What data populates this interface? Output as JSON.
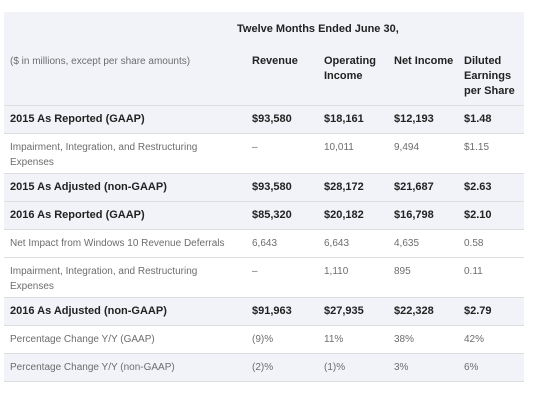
{
  "table": {
    "period_header": "Twelve Months Ended June 30,",
    "columns": [
      "($ in millions, except per share amounts)",
      "Revenue",
      "Operating Income",
      "Net Income",
      "Diluted Earnings per Share"
    ],
    "rows": [
      {
        "label": "2015 As Reported (GAAP)",
        "revenue": "$93,580",
        "operating_income": "$18,161",
        "net_income": "$12,193",
        "eps": "$1.48",
        "style": "bold",
        "bg": "shaded"
      },
      {
        "label": "Impairment, Integration, and Restructuring Expenses",
        "revenue": "–",
        "operating_income": "10,011",
        "net_income": "9,494",
        "eps": "$1.15",
        "style": "light",
        "bg": "white"
      },
      {
        "label": "2015 As Adjusted (non-GAAP)",
        "revenue": "$93,580",
        "operating_income": "$28,172",
        "net_income": "$21,687",
        "eps": "$2.63",
        "style": "bold",
        "bg": "shaded"
      },
      {
        "label": "2016 As Reported (GAAP)",
        "revenue": "$85,320",
        "operating_income": "$20,182",
        "net_income": "$16,798",
        "eps": "$2.10",
        "style": "bold",
        "bg": "shaded"
      },
      {
        "label": "Net Impact from Windows 10 Revenue Deferrals",
        "revenue": "6,643",
        "operating_income": "6,643",
        "net_income": "4,635",
        "eps": "0.58",
        "style": "light",
        "bg": "white"
      },
      {
        "label": "Impairment, Integration, and Restructuring Expenses",
        "revenue": "–",
        "operating_income": "1,110",
        "net_income": "895",
        "eps": "0.11",
        "style": "light",
        "bg": "white"
      },
      {
        "label": "2016 As Adjusted (non-GAAP)",
        "revenue": "$91,963",
        "operating_income": "$27,935",
        "net_income": "$22,328",
        "eps": "$2.79",
        "style": "bold",
        "bg": "shaded"
      },
      {
        "label": "Percentage Change Y/Y (GAAP)",
        "revenue": "(9)%",
        "operating_income": "11%",
        "net_income": "38%",
        "eps": "42%",
        "style": "light",
        "bg": "white"
      },
      {
        "label": "Percentage Change Y/Y (non-GAAP)",
        "revenue": "(2)%",
        "operating_income": "(1)%",
        "net_income": "3%",
        "eps": "6%",
        "style": "light",
        "bg": "shaded"
      }
    ]
  }
}
